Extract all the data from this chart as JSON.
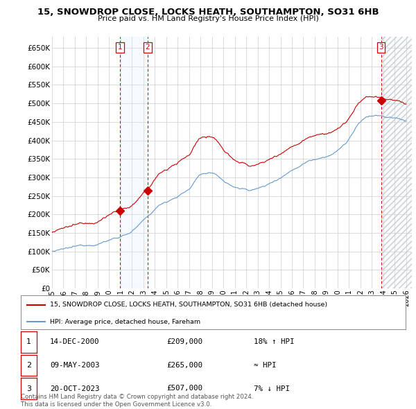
{
  "title": "15, SNOWDROP CLOSE, LOCKS HEATH, SOUTHAMPTON, SO31 6HB",
  "subtitle": "Price paid vs. HM Land Registry's House Price Index (HPI)",
  "ylim": [
    0,
    680000
  ],
  "yticks": [
    0,
    50000,
    100000,
    150000,
    200000,
    250000,
    300000,
    350000,
    400000,
    450000,
    500000,
    550000,
    600000,
    650000
  ],
  "xlim_start": 1995.0,
  "xlim_end": 2026.5,
  "sale_dates": [
    2000.958,
    2003.36,
    2023.8
  ],
  "sale_prices": [
    209000,
    265000,
    507000
  ],
  "sale_labels": [
    "1",
    "2",
    "3"
  ],
  "legend_red_label": "15, SNOWDROP CLOSE, LOCKS HEATH, SOUTHAMPTON, SO31 6HB (detached house)",
  "legend_blue_label": "HPI: Average price, detached house, Fareham",
  "table_rows": [
    {
      "num": "1",
      "date": "14-DEC-2000",
      "price": "£209,000",
      "rel": "18% ↑ HPI"
    },
    {
      "num": "2",
      "date": "09-MAY-2003",
      "price": "£265,000",
      "rel": "≈ HPI"
    },
    {
      "num": "3",
      "date": "20-OCT-2023",
      "price": "£507,000",
      "rel": "7% ↓ HPI"
    }
  ],
  "footer": "Contains HM Land Registry data © Crown copyright and database right 2024.\nThis data is licensed under the Open Government Licence v3.0.",
  "red_color": "#cc0000",
  "blue_color": "#6699cc",
  "grid_color": "#cccccc",
  "shade_color": "#ddeeff",
  "bg_color": "#ffffff"
}
